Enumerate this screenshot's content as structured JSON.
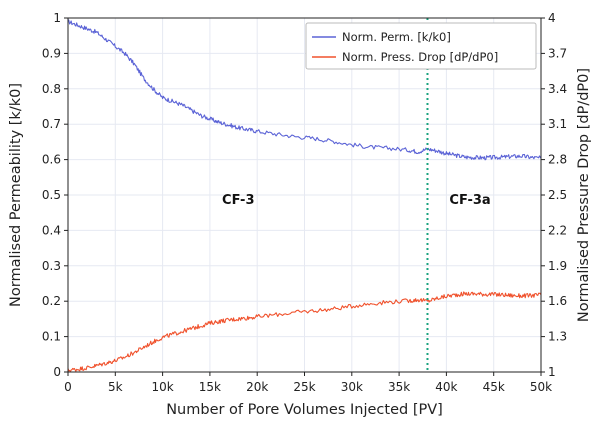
{
  "chart_data": {
    "type": "line",
    "title": "",
    "xlabel": "Number of Pore Volumes Injected [PV]",
    "ylabel_left": "Normalised Permeability [k/k0]",
    "ylabel_right": "Normalised Pressure Drop [dP/dP0]",
    "xlim": [
      0,
      50000
    ],
    "ylim_left": [
      0,
      1
    ],
    "ylim_right": [
      1,
      4
    ],
    "x_ticks": [
      0,
      5000,
      10000,
      15000,
      20000,
      25000,
      30000,
      35000,
      40000,
      45000,
      50000
    ],
    "x_tick_labels": [
      "0",
      "5k",
      "10k",
      "15k",
      "20k",
      "25k",
      "30k",
      "35k",
      "40k",
      "45k",
      "50k"
    ],
    "y_left_ticks": [
      0,
      0.1,
      0.2,
      0.3,
      0.4,
      0.5,
      0.6,
      0.7,
      0.8,
      0.9,
      1
    ],
    "y_left_tick_labels": [
      "0",
      "0.1",
      "0.2",
      "0.3",
      "0.4",
      "0.5",
      "0.6",
      "0.7",
      "0.8",
      "0.9",
      "1"
    ],
    "y_right_ticks": [
      1,
      1.3,
      1.6,
      1.9,
      2.2,
      2.5,
      2.8,
      3.1,
      3.4,
      3.7,
      4
    ],
    "y_right_tick_labels": [
      "1",
      "1.3",
      "1.6",
      "1.9",
      "2.2",
      "2.5",
      "2.8",
      "3.1",
      "3.4",
      "3.7",
      "4"
    ],
    "grid": true,
    "legend_position": "top-right",
    "series": [
      {
        "name": "Norm. Perm. [k/k0]",
        "axis": "left",
        "color": "#5b63d6",
        "x": [
          0,
          1000,
          2000,
          3000,
          4000,
          5000,
          6000,
          7000,
          8000,
          9000,
          10000,
          11000,
          12000,
          13000,
          14000,
          15000,
          16000,
          17000,
          18000,
          19000,
          20000,
          22000,
          24000,
          26000,
          28000,
          30000,
          32000,
          34000,
          36000,
          37000,
          38000,
          39000,
          40000,
          41000,
          42000,
          43000,
          44000,
          45000,
          46000,
          47000,
          48000,
          49000,
          50000
        ],
        "y": [
          0.99,
          0.98,
          0.97,
          0.96,
          0.94,
          0.92,
          0.9,
          0.87,
          0.83,
          0.8,
          0.775,
          0.765,
          0.755,
          0.74,
          0.725,
          0.715,
          0.705,
          0.698,
          0.69,
          0.685,
          0.68,
          0.672,
          0.665,
          0.66,
          0.652,
          0.642,
          0.635,
          0.632,
          0.627,
          0.622,
          0.63,
          0.625,
          0.617,
          0.612,
          0.607,
          0.606,
          0.605,
          0.606,
          0.607,
          0.609,
          0.61,
          0.606,
          0.604
        ]
      },
      {
        "name": "Norm. Press. Drop [dP/dP0]",
        "axis": "left",
        "color": "#f0522d",
        "x": [
          0,
          1000,
          2000,
          3000,
          4000,
          5000,
          6000,
          7000,
          8000,
          9000,
          10000,
          11000,
          12000,
          13000,
          14000,
          15000,
          16000,
          17000,
          18000,
          19000,
          20000,
          22000,
          24000,
          26000,
          28000,
          30000,
          32000,
          34000,
          36000,
          37000,
          38000,
          39000,
          40000,
          41000,
          42000,
          43000,
          44000,
          45000,
          46000,
          47000,
          48000,
          49000,
          50000
        ],
        "y": [
          0.005,
          0.008,
          0.012,
          0.018,
          0.025,
          0.032,
          0.042,
          0.055,
          0.07,
          0.085,
          0.098,
          0.106,
          0.114,
          0.122,
          0.13,
          0.138,
          0.143,
          0.147,
          0.15,
          0.153,
          0.156,
          0.162,
          0.168,
          0.173,
          0.178,
          0.186,
          0.193,
          0.198,
          0.201,
          0.204,
          0.2,
          0.208,
          0.214,
          0.218,
          0.221,
          0.221,
          0.22,
          0.219,
          0.218,
          0.216,
          0.215,
          0.216,
          0.218
        ]
      }
    ],
    "annotations": [
      {
        "text": "CF-3",
        "x": 18000,
        "y": 0.475
      },
      {
        "text": "CF-3a",
        "x": 42500,
        "y": 0.475
      }
    ],
    "vline": {
      "x": 38000,
      "color": "#1aa37e"
    }
  }
}
